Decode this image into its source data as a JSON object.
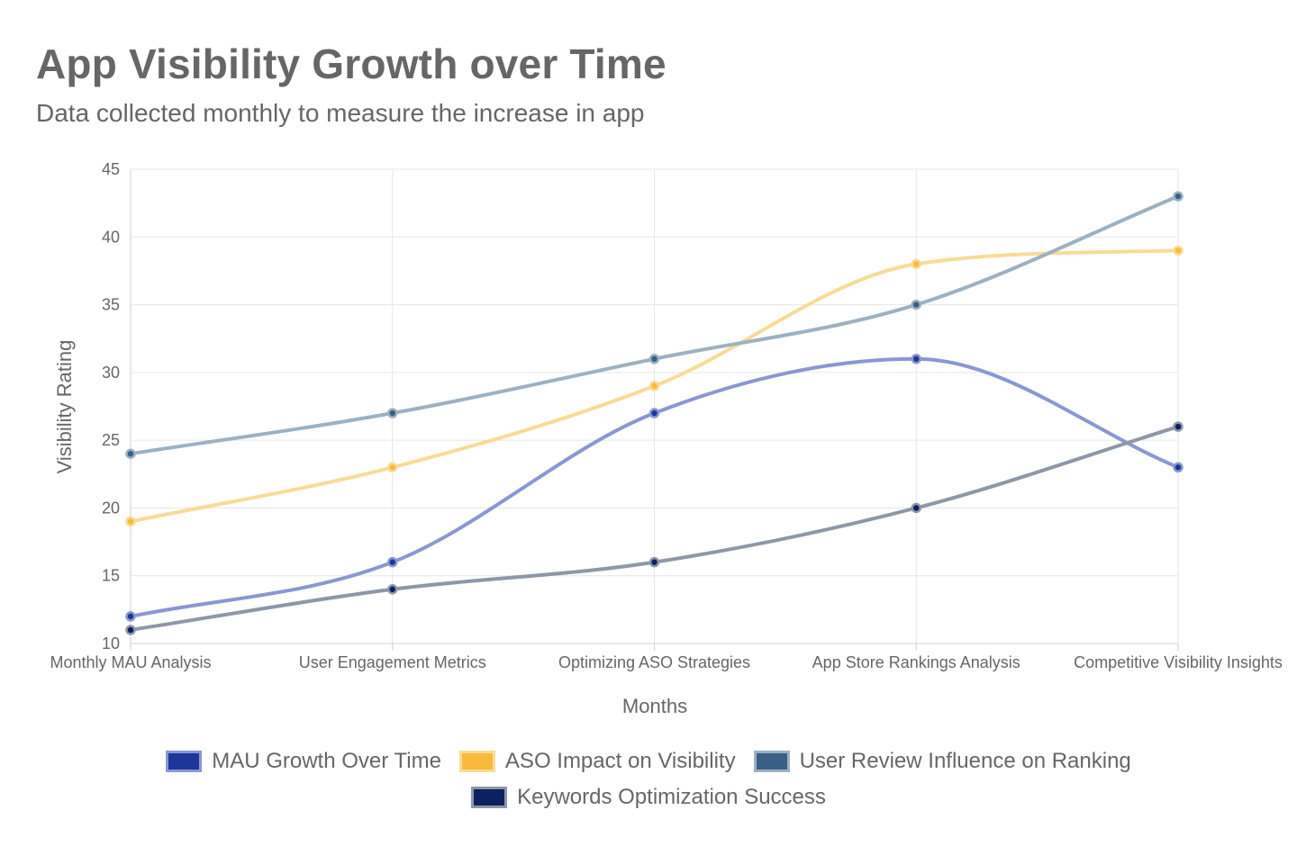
{
  "header": {
    "title": "App Visibility Growth over Time",
    "subtitle": "Data collected monthly to measure the increase in app"
  },
  "chart_data": {
    "type": "line",
    "title": "App Visibility Growth over Time",
    "subtitle": "Data collected monthly to measure the increase in app",
    "xlabel": "Months",
    "ylabel": "Visibility Rating",
    "ylim": [
      10,
      45
    ],
    "yticks": [
      10,
      15,
      20,
      25,
      30,
      35,
      40,
      45
    ],
    "grid": true,
    "legend_position": "bottom",
    "categories": [
      "Monthly MAU Analysis",
      "User Engagement Metrics",
      "Optimizing ASO Strategies",
      "App Store Rankings Analysis",
      "Competitive Visibility Insights"
    ],
    "series": [
      {
        "name": "MAU Growth Over Time",
        "values": [
          12,
          16,
          27,
          31,
          23
        ],
        "color": "#1f3699",
        "line_color": "#8a97d3"
      },
      {
        "name": "ASO Impact on Visibility",
        "values": [
          19,
          23,
          29,
          38,
          39
        ],
        "color": "#f9b93b",
        "line_color": "#f7dc97"
      },
      {
        "name": "User Review Influence on Ranking",
        "values": [
          24,
          27,
          31,
          35,
          43
        ],
        "color": "#3a5f86",
        "line_color": "#9db1c2"
      },
      {
        "name": "Keywords Optimization Success",
        "values": [
          11,
          14,
          16,
          20,
          26
        ],
        "color": "#0d2060",
        "line_color": "#8e97a6"
      }
    ]
  }
}
